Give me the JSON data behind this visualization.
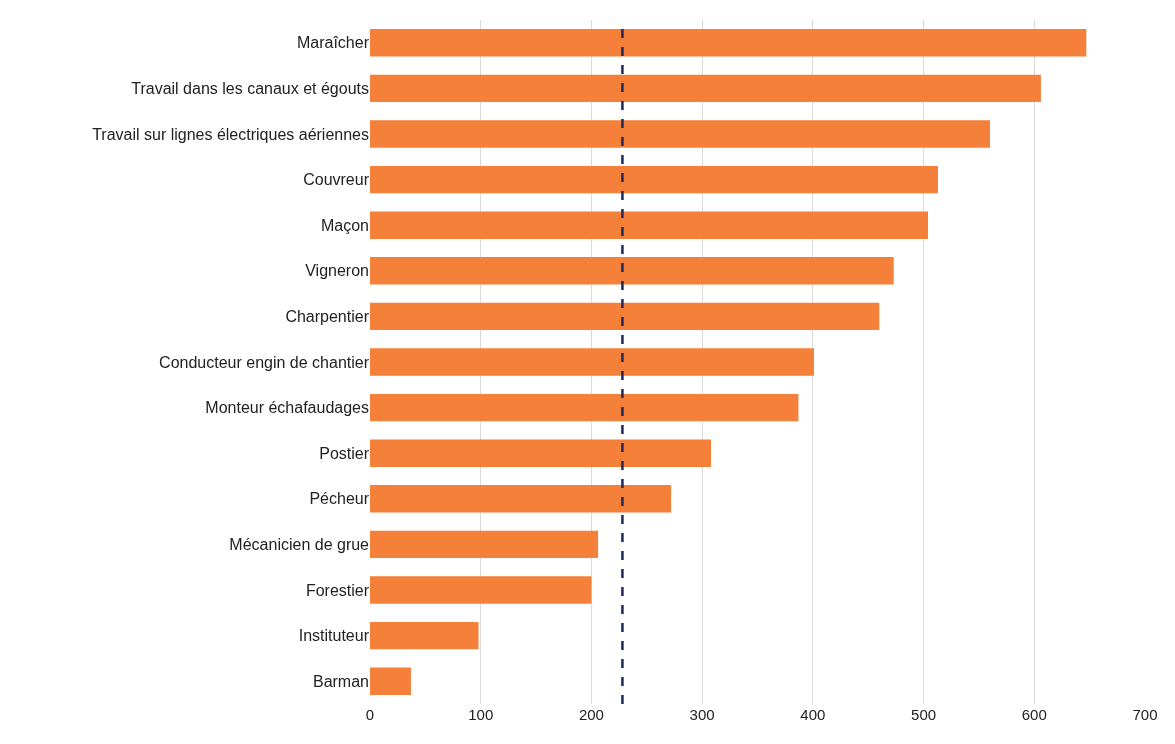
{
  "chart_data": {
    "type": "bar",
    "orientation": "horizontal",
    "categories": [
      "Maraîcher",
      "Travail dans les canaux et égouts",
      "Travail sur lignes électriques aériennes",
      "Couvreur",
      "Maçon",
      "Vigneron",
      "Charpentier",
      "Conducteur engin de chantier",
      "Monteur échafaudages",
      "Postier",
      "Pécheur",
      "Mécanicien de grue",
      "Forestier",
      "Instituteur",
      "Barman"
    ],
    "values": [
      647,
      606,
      560,
      513,
      504,
      473,
      460,
      401,
      387,
      308,
      272,
      206,
      200,
      98,
      37
    ],
    "color": "#f4803a",
    "xlim": [
      0,
      700
    ],
    "xticks": [
      0,
      100,
      200,
      300,
      400,
      500,
      600,
      700
    ],
    "grid": "x",
    "legend": false,
    "ref_lines": [
      {
        "axis": "x",
        "value": 228,
        "color": "#1f2a5c",
        "line_style": "dashed"
      }
    ]
  }
}
